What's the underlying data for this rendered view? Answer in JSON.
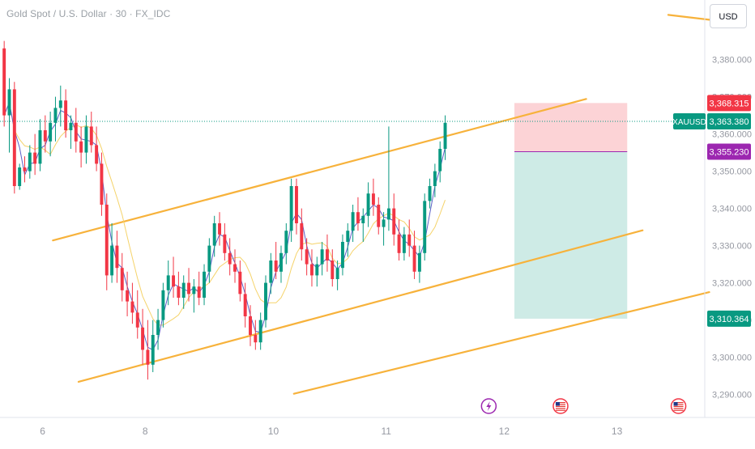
{
  "header": {
    "symbol_title": "Gold Spot / U.S. Dollar · 30 · FX_IDC",
    "currency": "USD"
  },
  "chart_data": {
    "type": "candlestick",
    "symbol": "XAUUSD",
    "ylim": [
      3285,
      3390
    ],
    "y_ticks": [
      3380,
      3370,
      3360,
      3350,
      3340,
      3330,
      3320,
      3310,
      3300,
      3290
    ],
    "y_tick_labels": [
      "3,380.000",
      "3,370.000",
      "3,360.000",
      "3,350.000",
      "3,340.000",
      "3,330.000",
      "3,320.000",
      "3,310.000",
      "3,300.000",
      "3,290.000"
    ],
    "x_ticks": [
      {
        "label": "6",
        "bar": 8
      },
      {
        "label": "8",
        "bar": 28
      },
      {
        "label": "10",
        "bar": 53
      },
      {
        "label": "11",
        "bar": 75
      },
      {
        "label": "12",
        "bar": 98
      },
      {
        "label": "13",
        "bar": 120
      }
    ],
    "price_labels": [
      {
        "name": "stop",
        "value": 3368.315,
        "text": "3,368.315",
        "color": "#f23645"
      },
      {
        "name": "current",
        "value": 3363.38,
        "text": "3,363.380",
        "color": "#089981",
        "symbol": "XAUUSD"
      },
      {
        "name": "entry",
        "value": 3355.23,
        "text": "3,355.230",
        "color": "#9c27b0"
      },
      {
        "name": "target",
        "value": 3310.364,
        "text": "3,310.364",
        "color": "#089981"
      }
    ],
    "position": {
      "entry": 3355.23,
      "stop": 3368.315,
      "target": 3310.364,
      "bar_start": 100,
      "bar_end": 122
    },
    "trendlines": [
      {
        "bar1": 10,
        "p1": 3331.4,
        "bar2": 114,
        "p2": 3369.4
      },
      {
        "bar1": 15,
        "p1": 3293.4,
        "bar2": 125,
        "p2": 3334.1
      },
      {
        "bar1": 57,
        "p1": 3290.2,
        "bar2": 138,
        "p2": 3317.5
      },
      {
        "bar1": 130,
        "p1": 3392,
        "bar2": 138,
        "p2": 3390.7
      }
    ],
    "event_icons": [
      {
        "kind": "lightning",
        "bar": 95
      },
      {
        "kind": "us-flag",
        "bar": 109
      },
      {
        "kind": "us-flag",
        "bar": 132
      }
    ],
    "candles": [
      [
        3383,
        3385,
        3362,
        3365
      ],
      [
        3365,
        3375,
        3355,
        3372
      ],
      [
        3372,
        3374,
        3344,
        3346
      ],
      [
        3346,
        3352,
        3345,
        3351
      ],
      [
        3351,
        3354,
        3347,
        3350
      ],
      [
        3350,
        3357,
        3348,
        3355
      ],
      [
        3355,
        3360,
        3349,
        3352
      ],
      [
        3352,
        3364,
        3350,
        3361
      ],
      [
        3361,
        3365,
        3355,
        3358
      ],
      [
        3358,
        3366,
        3354,
        3363
      ],
      [
        3363,
        3370,
        3358,
        3367
      ],
      [
        3367,
        3373,
        3362,
        3369
      ],
      [
        3369,
        3372,
        3359,
        3361
      ],
      [
        3361,
        3365,
        3356,
        3363
      ],
      [
        3363,
        3367,
        3355,
        3358
      ],
      [
        3358,
        3362,
        3351,
        3355
      ],
      [
        3355,
        3365,
        3352,
        3362
      ],
      [
        3362,
        3366,
        3355,
        3357
      ],
      [
        3357,
        3362,
        3350,
        3352
      ],
      [
        3352,
        3355,
        3338,
        3341
      ],
      [
        3341,
        3344,
        3318,
        3322
      ],
      [
        3322,
        3336,
        3320,
        3330
      ],
      [
        3330,
        3334,
        3320,
        3324
      ],
      [
        3324,
        3328,
        3315,
        3318
      ],
      [
        3318,
        3323,
        3311,
        3315
      ],
      [
        3315,
        3320,
        3309,
        3312
      ],
      [
        3312,
        3318,
        3305,
        3308
      ],
      [
        3308,
        3313,
        3298,
        3302
      ],
      [
        3302,
        3310,
        3294,
        3298
      ],
      [
        3298,
        3310,
        3296,
        3306
      ],
      [
        3306,
        3313,
        3302,
        3310
      ],
      [
        3310,
        3320,
        3308,
        3318
      ],
      [
        3318,
        3326,
        3314,
        3322
      ],
      [
        3322,
        3327,
        3316,
        3319
      ],
      [
        3319,
        3323,
        3314,
        3316
      ],
      [
        3316,
        3322,
        3313,
        3320
      ],
      [
        3320,
        3324,
        3315,
        3317
      ],
      [
        3317,
        3321,
        3312,
        3319
      ],
      [
        3319,
        3323,
        3314,
        3316
      ],
      [
        3316,
        3325,
        3314,
        3323
      ],
      [
        3323,
        3332,
        3320,
        3330
      ],
      [
        3330,
        3338,
        3327,
        3336
      ],
      [
        3336,
        3339,
        3330,
        3333
      ],
      [
        3333,
        3336,
        3326,
        3328
      ],
      [
        3328,
        3332,
        3322,
        3325
      ],
      [
        3325,
        3329,
        3320,
        3323
      ],
      [
        3323,
        3326,
        3315,
        3317
      ],
      [
        3317,
        3320,
        3308,
        3311
      ],
      [
        3311,
        3314,
        3303,
        3306
      ],
      [
        3306,
        3310,
        3302,
        3304
      ],
      [
        3304,
        3312,
        3302,
        3310
      ],
      [
        3310,
        3322,
        3308,
        3320
      ],
      [
        3320,
        3328,
        3317,
        3326
      ],
      [
        3326,
        3331,
        3321,
        3323
      ],
      [
        3323,
        3330,
        3320,
        3328
      ],
      [
        3328,
        3336,
        3325,
        3334
      ],
      [
        3334,
        3348,
        3331,
        3346
      ],
      [
        3346,
        3348,
        3333,
        3336
      ],
      [
        3336,
        3340,
        3326,
        3329
      ],
      [
        3329,
        3332,
        3322,
        3325
      ],
      [
        3325,
        3329,
        3319,
        3322
      ],
      [
        3322,
        3327,
        3319,
        3325
      ],
      [
        3325,
        3331,
        3322,
        3329
      ],
      [
        3329,
        3333,
        3323,
        3326
      ],
      [
        3326,
        3329,
        3319,
        3321
      ],
      [
        3321,
        3326,
        3318,
        3324
      ],
      [
        3324,
        3333,
        3322,
        3331
      ],
      [
        3331,
        3336,
        3327,
        3334
      ],
      [
        3334,
        3341,
        3331,
        3339
      ],
      [
        3339,
        3343,
        3334,
        3336
      ],
      [
        3336,
        3340,
        3331,
        3338
      ],
      [
        3338,
        3347,
        3335,
        3344
      ],
      [
        3344,
        3348,
        3338,
        3341
      ],
      [
        3341,
        3343,
        3333,
        3335
      ],
      [
        3335,
        3339,
        3330,
        3337
      ],
      [
        3337,
        3362,
        3334,
        3340
      ],
      [
        3340,
        3344,
        3330,
        3333
      ],
      [
        3333,
        3337,
        3326,
        3328
      ],
      [
        3328,
        3335,
        3326,
        3333
      ],
      [
        3333,
        3337,
        3327,
        3330
      ],
      [
        3330,
        3334,
        3321,
        3323
      ],
      [
        3323,
        3330,
        3320,
        3328
      ],
      [
        3328,
        3344,
        3326,
        3342
      ],
      [
        3342,
        3348,
        3340,
        3346
      ],
      [
        3346,
        3352,
        3343,
        3350
      ],
      [
        3350,
        3358,
        3347,
        3356
      ],
      [
        3356,
        3365,
        3353,
        3363
      ]
    ]
  }
}
